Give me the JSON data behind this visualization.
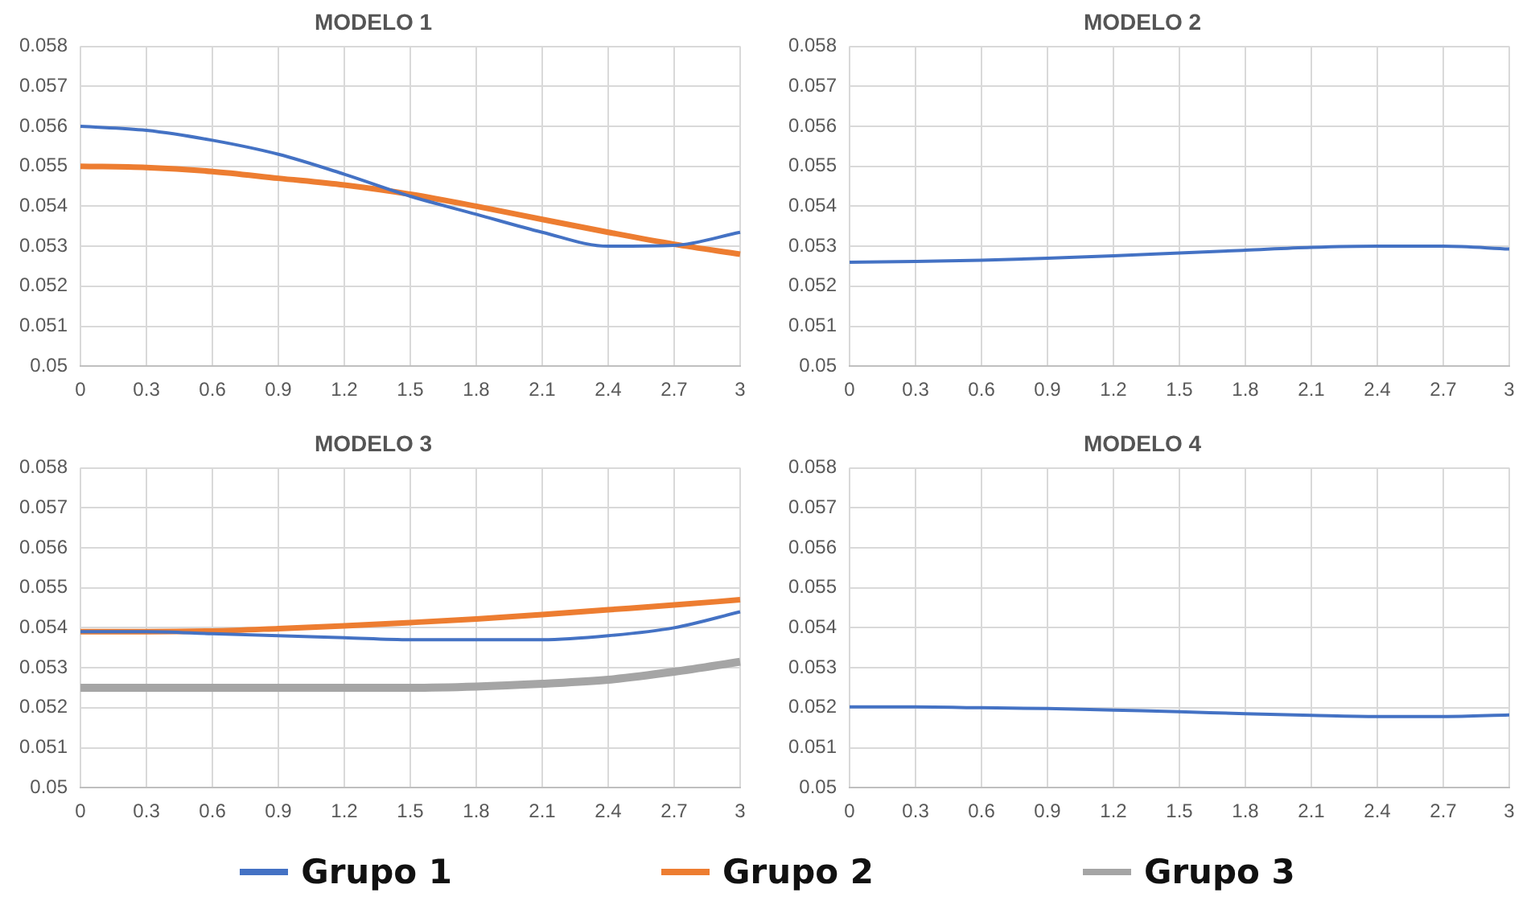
{
  "chart_data": [
    {
      "type": "line",
      "title": "MODELO 1",
      "categories": [
        "0",
        "0.3",
        "0.6",
        "0.9",
        "1.2",
        "1.5",
        "1.8",
        "2.1",
        "2.4",
        "2.7",
        "3"
      ],
      "ylim": [
        0.05,
        0.058
      ],
      "yticks": [
        0.05,
        0.051,
        0.052,
        0.053,
        0.054,
        0.055,
        0.056,
        0.057,
        0.058
      ],
      "grid": true,
      "marker": "none",
      "legend": "bottom",
      "series": [
        {
          "name": "Grupo 1",
          "color": "#4472c4",
          "values": [
            0.056,
            0.0559,
            0.05565,
            0.0553,
            0.0548,
            0.05425,
            0.0538,
            0.05335,
            0.053,
            0.05302,
            0.05335
          ]
        },
        {
          "name": "Grupo 2",
          "color": "#ed7d31",
          "values": [
            0.055,
            0.05497,
            0.05487,
            0.0547,
            0.05453,
            0.0543,
            0.054,
            0.05367,
            0.05335,
            0.05305,
            0.0528
          ]
        }
      ]
    },
    {
      "type": "line",
      "title": "MODELO 2",
      "categories": [
        "0",
        "0.3",
        "0.6",
        "0.9",
        "1.2",
        "1.5",
        "1.8",
        "2.1",
        "2.4",
        "2.7",
        "3"
      ],
      "ylim": [
        0.05,
        0.058
      ],
      "yticks": [
        0.05,
        0.051,
        0.052,
        0.053,
        0.054,
        0.055,
        0.056,
        0.057,
        0.058
      ],
      "grid": true,
      "marker": "none",
      "legend": "bottom",
      "series": [
        {
          "name": "Grupo 1",
          "color": "#4472c4",
          "values": [
            0.0526,
            0.05262,
            0.05265,
            0.0527,
            0.05276,
            0.05283,
            0.0529,
            0.05297,
            0.053,
            0.053,
            0.05293
          ]
        }
      ]
    },
    {
      "type": "line",
      "title": "MODELO 3",
      "categories": [
        "0",
        "0.3",
        "0.6",
        "0.9",
        "1.2",
        "1.5",
        "1.8",
        "2.1",
        "2.4",
        "2.7",
        "3"
      ],
      "ylim": [
        0.05,
        0.058
      ],
      "yticks": [
        0.05,
        0.051,
        0.052,
        0.053,
        0.054,
        0.055,
        0.056,
        0.057,
        0.058
      ],
      "grid": true,
      "marker": "none",
      "legend": "bottom",
      "series": [
        {
          "name": "Grupo 1",
          "color": "#4472c4",
          "values": [
            0.0539,
            0.0539,
            0.05385,
            0.0538,
            0.05375,
            0.0537,
            0.0537,
            0.0537,
            0.0538,
            0.054,
            0.0544
          ]
        },
        {
          "name": "Grupo 2",
          "color": "#ed7d31",
          "values": [
            0.0539,
            0.0539,
            0.05392,
            0.05398,
            0.05405,
            0.05413,
            0.05422,
            0.05433,
            0.05445,
            0.05457,
            0.0547
          ]
        },
        {
          "name": "Grupo 3",
          "color": "#a5a5a5",
          "values": [
            0.0525,
            0.0525,
            0.0525,
            0.0525,
            0.0525,
            0.0525,
            0.05253,
            0.0526,
            0.0527,
            0.0529,
            0.05315
          ]
        }
      ]
    },
    {
      "type": "line",
      "title": "MODELO 4",
      "categories": [
        "0",
        "0.3",
        "0.6",
        "0.9",
        "1.2",
        "1.5",
        "1.8",
        "2.1",
        "2.4",
        "2.7",
        "3"
      ],
      "ylim": [
        0.05,
        0.058
      ],
      "yticks": [
        0.05,
        0.051,
        0.052,
        0.053,
        0.054,
        0.055,
        0.056,
        0.057,
        0.058
      ],
      "grid": true,
      "marker": "none",
      "legend": "bottom",
      "series": [
        {
          "name": "Grupo 1",
          "color": "#4472c4",
          "values": [
            0.05202,
            0.05202,
            0.052,
            0.05198,
            0.05194,
            0.0519,
            0.05185,
            0.05181,
            0.05178,
            0.05178,
            0.05182
          ]
        }
      ]
    }
  ]
}
